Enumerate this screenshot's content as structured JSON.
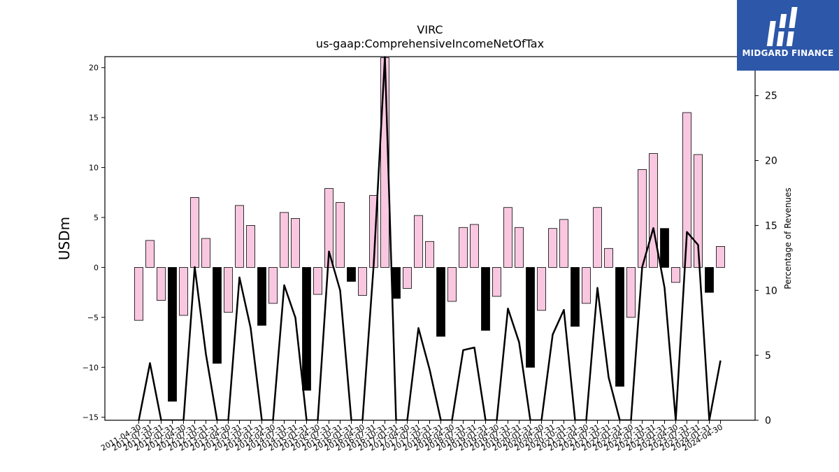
{
  "chart_data": {
    "type": "bar",
    "title": "VIRC",
    "subtitle": "us-gaap:ComprehensiveIncomeNetOfTax",
    "ylabel": "USDm",
    "y2label": "Percentage of Revenues",
    "ylim": [
      -15.3,
      21.1
    ],
    "y2lim": [
      0,
      28
    ],
    "yticks": [
      -15,
      -10,
      -5,
      0,
      5,
      10,
      15,
      20
    ],
    "y2ticks": [
      0,
      5,
      10,
      15,
      20,
      25
    ],
    "categories": [
      "2011-04-30",
      "2011-07-31",
      "2011-10-31",
      "2012-01-31",
      "2012-04-30",
      "2012-07-31",
      "2012-10-31",
      "2013-01-31",
      "2013-04-30",
      "2013-07-31",
      "2013-10-31",
      "2014-01-31",
      "2014-04-30",
      "2014-07-31",
      "2014-10-31",
      "2015-01-31",
      "2015-04-30",
      "2015-07-31",
      "2015-10-31",
      "2016-01-31",
      "2016-04-30",
      "2016-07-31",
      "2016-10-31",
      "2017-01-31",
      "2017-04-30",
      "2017-07-31",
      "2017-10-31",
      "2018-01-31",
      "2018-04-30",
      "2018-07-31",
      "2018-10-31",
      "2019-01-31",
      "2019-04-30",
      "2019-07-31",
      "2019-10-31",
      "2020-01-31",
      "2020-04-30",
      "2020-07-31",
      "2020-10-31",
      "2021-01-31",
      "2021-04-30",
      "2021-07-31",
      "2021-10-31",
      "2022-01-31",
      "2022-04-30",
      "2022-07-31",
      "2022-10-31",
      "2023-01-31",
      "2023-04-30",
      "2023-07-31",
      "2023-10-31",
      "2024-01-31",
      "2024-04-30"
    ],
    "xtick_labels": [
      "2011-04-30",
      "2011-07-31",
      "2011-10-31",
      "2012-01-31",
      "2012-04-30",
      "2012-07-31",
      "2012-10-31",
      "2013-01-31",
      "2013-04-30",
      "2013-07-31",
      "2013-10-31",
      "2014-01-31",
      "2014-04-30",
      "2014-07-31",
      "2014-10-31",
      "2015-01-31",
      "2015-04-30",
      "2015-07-31",
      "2015-10-31",
      "2016-01-31",
      "2016-04-30",
      "2016-07-31",
      "2016-10-31",
      "2017-01-31",
      "2017-04-30",
      "2017-07-31",
      "2017-10-31",
      "2018-01-31",
      "2018-04-30",
      "2018-07-31",
      "2018-10-31",
      "2019-01-31",
      "2019-04-30",
      "2019-07-31",
      "2019-10-31",
      "2020-01-31",
      "2020-04-30",
      "2020-07-31",
      "2020-10-31",
      "2021-01-31",
      "2021-04-30",
      "2021-07-31",
      "2021-10-31",
      "2022-01-31",
      "2022-04-30",
      "2022-07-31",
      "2022-10-31",
      "2023-01-31",
      "2023-04-30",
      "2023-07-31",
      "2023-10-31",
      "2024-01-31",
      "2024-04-30"
    ],
    "values": [
      -5.3,
      2.7,
      -3.3,
      -13.4,
      -4.8,
      7.0,
      2.9,
      -9.6,
      -4.5,
      6.2,
      4.2,
      -5.8,
      -3.6,
      5.5,
      4.9,
      -12.3,
      -2.7,
      7.9,
      6.5,
      -1.4,
      -2.8,
      7.2,
      21.0,
      -3.1,
      -2.1,
      5.2,
      2.6,
      -6.9,
      -3.4,
      4.0,
      4.3,
      -6.3,
      -2.9,
      6.0,
      4.0,
      -10.0,
      -4.3,
      3.9,
      4.8,
      -5.9,
      -3.6,
      6.0,
      1.9,
      -11.9,
      -5.0,
      9.8,
      11.4,
      3.9,
      -1.5,
      15.5,
      11.3,
      -2.5,
      2.1
    ],
    "bar_fill": [
      "pink",
      "pink",
      "pink",
      "black",
      "pink",
      "pink",
      "pink",
      "black",
      "pink",
      "pink",
      "pink",
      "black",
      "pink",
      "pink",
      "pink",
      "black",
      "pink",
      "pink",
      "pink",
      "black",
      "pink",
      "pink",
      "pink",
      "black",
      "pink",
      "pink",
      "pink",
      "black",
      "pink",
      "pink",
      "pink",
      "black",
      "pink",
      "pink",
      "pink",
      "black",
      "pink",
      "pink",
      "pink",
      "black",
      "pink",
      "pink",
      "pink",
      "black",
      "pink",
      "pink",
      "pink",
      "black",
      "pink",
      "pink",
      "pink",
      "black",
      "pink"
    ],
    "line_values": [
      0,
      4.4,
      0,
      0,
      0,
      11.8,
      5.1,
      0,
      0,
      11.0,
      7.1,
      0,
      0,
      10.4,
      7.9,
      0,
      0,
      13.0,
      10.0,
      0,
      0,
      12.0,
      28.0,
      0,
      0,
      7.1,
      3.9,
      0,
      0,
      5.4,
      5.6,
      0,
      0,
      8.6,
      6.0,
      0,
      0,
      6.6,
      8.5,
      0,
      0,
      10.2,
      3.3,
      0,
      0,
      11.8,
      14.8,
      10.2,
      0,
      14.5,
      13.5,
      0,
      4.6
    ],
    "colors": {
      "pink": "#f9c8e0",
      "black": "#000000",
      "line": "#000000"
    }
  },
  "logo": {
    "text": "MIDGARD FINANCE",
    "bg": "#2d57a8"
  }
}
